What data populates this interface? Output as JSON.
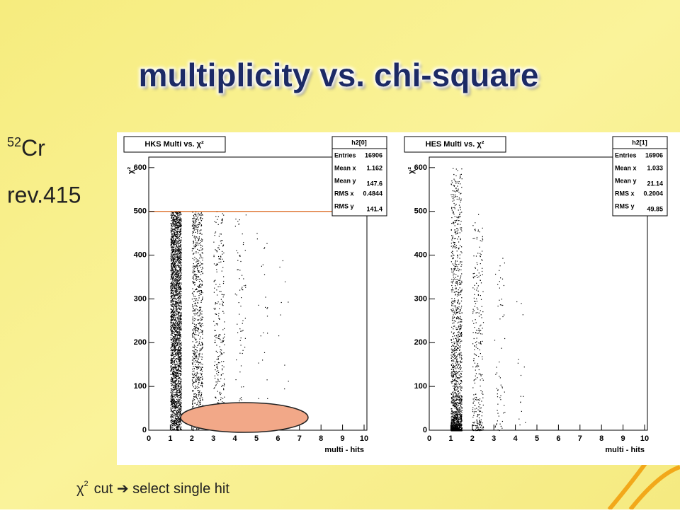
{
  "slide": {
    "title": "multiplicity vs. chi-square",
    "isotope_mass": "52",
    "isotope": "Cr",
    "revision": "rev.415",
    "note_symbol": "χ",
    "note_exp": "2",
    "note_text": "cut ➔ select single hit"
  },
  "chart_data": [
    {
      "type": "scatter",
      "title": "HKS Multi vs. χ²",
      "xlabel": "multi - hits",
      "ylabel": "χ²",
      "xlim": [
        0,
        10
      ],
      "ylim": [
        0,
        624
      ],
      "xticks": [
        0,
        1,
        2,
        3,
        4,
        5,
        6,
        7,
        8,
        9,
        10
      ],
      "yticks": [
        0,
        100,
        200,
        300,
        400,
        500,
        600
      ],
      "stats": {
        "name": "h2[0]",
        "labels": [
          "Entries",
          "Mean x",
          "Mean y",
          "RMS x",
          "RMS y"
        ],
        "values": [
          "16906",
          "1.162",
          "147.6",
          "0.4844",
          "141.4"
        ]
      },
      "cut_line": 500,
      "color": "#000000",
      "columns": [
        {
          "x": [
            1.0,
            1.5
          ],
          "ymax": 500,
          "points": 2600,
          "power": 1
        },
        {
          "x": [
            2.0,
            2.5
          ],
          "ymax": 500,
          "points": 800,
          "power": 1
        },
        {
          "x": [
            3.0,
            3.5
          ],
          "ymax": 500,
          "points": 260,
          "power": 1
        },
        {
          "x": [
            4.0,
            4.5
          ],
          "ymax": 500,
          "points": 70,
          "power": 1
        },
        {
          "x": [
            5.0,
            5.5
          ],
          "ymax": 500,
          "points": 25,
          "power": 1
        },
        {
          "x": [
            6.0,
            6.5
          ],
          "ymax": 500,
          "points": 10,
          "power": 1
        }
      ]
    },
    {
      "type": "scatter",
      "title": "HES Multi vs. χ²",
      "xlabel": "multi - hits",
      "ylabel": "χ²",
      "xlim": [
        0,
        10
      ],
      "ylim": [
        0,
        624
      ],
      "xticks": [
        0,
        1,
        2,
        3,
        4,
        5,
        6,
        7,
        8,
        9,
        10
      ],
      "yticks": [
        0,
        100,
        200,
        300,
        400,
        500,
        600
      ],
      "stats": {
        "name": "h2[1]",
        "labels": [
          "Entries",
          "Mean x",
          "Mean y",
          "RMS x",
          "RMS y"
        ],
        "values": [
          "16906",
          "1.033",
          "21.14",
          "0.2004",
          "49.85"
        ]
      },
      "color": "#000000",
      "columns": [
        {
          "x": [
            1.0,
            1.5
          ],
          "ymax": 600,
          "points": 1800,
          "power": 4
        },
        {
          "x": [
            2.0,
            2.5
          ],
          "ymax": 500,
          "points": 300,
          "power": 2
        },
        {
          "x": [
            3.0,
            3.5
          ],
          "ymax": 400,
          "points": 60,
          "power": 2
        },
        {
          "x": [
            4.0,
            4.5
          ],
          "ymax": 300,
          "points": 15,
          "power": 1
        }
      ]
    }
  ]
}
